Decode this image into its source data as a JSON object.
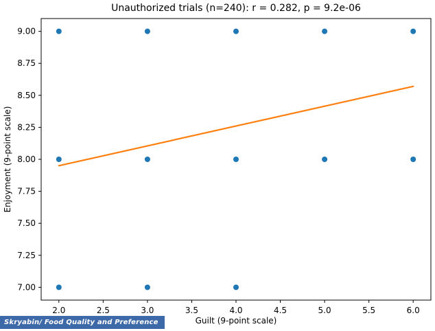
{
  "chart_data": {
    "type": "scatter",
    "title": "Unauthorized trials (n=240): r = 0.282, p = 9.2e-06",
    "xlabel": "Guilt (9-point scale)",
    "ylabel": "Enjoyment (9-point scale)",
    "xlim": [
      1.8,
      6.2
    ],
    "ylim": [
      6.9,
      9.1
    ],
    "grid": false,
    "legend": null,
    "xticks": {
      "values": [
        2.0,
        2.5,
        3.0,
        3.5,
        4.0,
        4.5,
        5.0,
        5.5,
        6.0
      ],
      "labels": [
        "2.0",
        "2.5",
        "3.0",
        "3.5",
        "4.0",
        "4.5",
        "5.0",
        "5.5",
        "6.0"
      ]
    },
    "yticks": {
      "values": [
        7.0,
        7.25,
        7.5,
        7.75,
        8.0,
        8.25,
        8.5,
        8.75,
        9.0
      ],
      "labels": [
        "7.00",
        "7.25",
        "7.50",
        "7.75",
        "8.00",
        "8.25",
        "8.50",
        "8.75",
        "9.00"
      ]
    },
    "points": [
      {
        "x": 2,
        "y": 9
      },
      {
        "x": 3,
        "y": 9
      },
      {
        "x": 4,
        "y": 9
      },
      {
        "x": 5,
        "y": 9
      },
      {
        "x": 6,
        "y": 9
      },
      {
        "x": 2,
        "y": 8
      },
      {
        "x": 3,
        "y": 8
      },
      {
        "x": 4,
        "y": 8
      },
      {
        "x": 5,
        "y": 8
      },
      {
        "x": 6,
        "y": 8
      },
      {
        "x": 2,
        "y": 7
      },
      {
        "x": 3,
        "y": 7
      },
      {
        "x": 4,
        "y": 7
      }
    ],
    "trend_line": {
      "x1": 2.0,
      "y1": 7.95,
      "x2": 6.0,
      "y2": 8.57
    },
    "point_color": "#1f77b4",
    "line_color": "#ff7f0e",
    "axis_color": "#000000"
  },
  "watermark": {
    "text": "Skryabin/ Food Quality and Preference",
    "bg": "#3d69a8"
  }
}
